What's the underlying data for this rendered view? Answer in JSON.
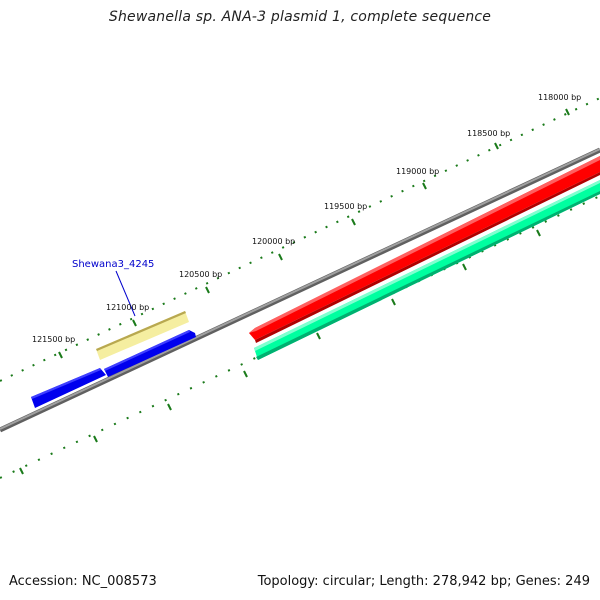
{
  "title": "Shewanella sp. ANA-3 plasmid 1, complete sequence",
  "accession_text": "Accession: NC_008573",
  "summary_text": "Topology: circular; Length: 278,942 bp; Genes: 249",
  "tick_labels": [
    "118000 bp",
    "118500 bp",
    "119000 bp",
    "119500 bp",
    "120000 bp",
    "120500 bp",
    "121000 bp",
    "121500 bp"
  ],
  "gene_label": "Shewana3_4245",
  "colors": {
    "backbone": "#808080",
    "tick": "#1a7a1a",
    "forward_gene": "#ff0000",
    "reverse_gene": "#00ffa0",
    "cds_blue": "#0000ee",
    "highlight": "#f5eea0",
    "label": "#0000cc"
  }
}
